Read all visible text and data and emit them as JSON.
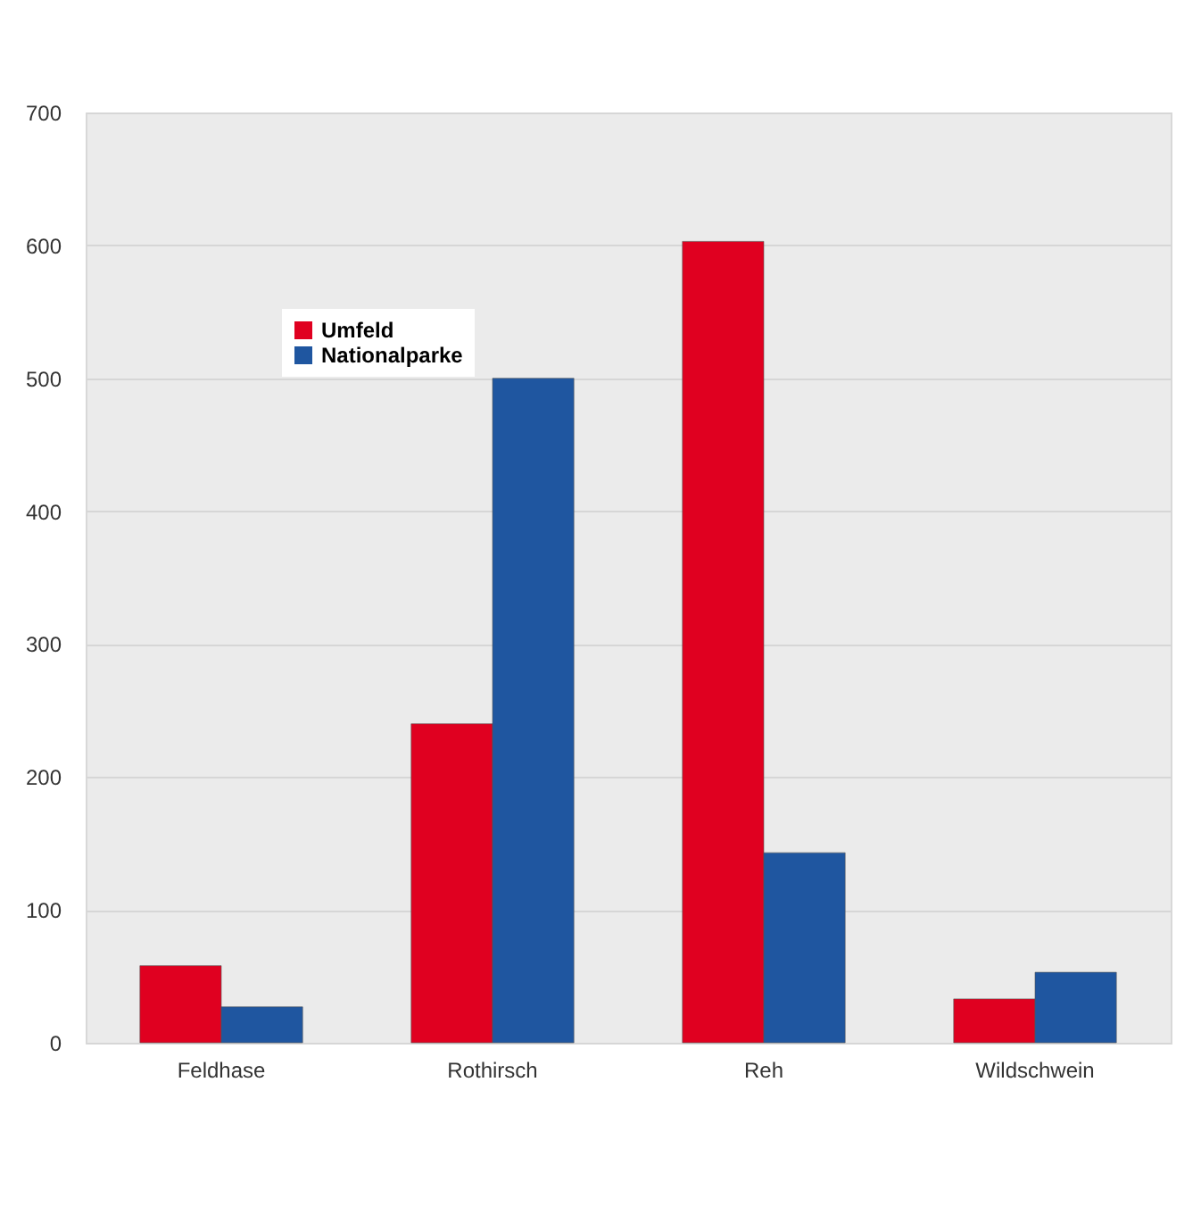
{
  "chart_data": {
    "type": "bar",
    "categories": [
      "Feldhase",
      "Rothirsch",
      "Reh",
      "Wildschwein"
    ],
    "series": [
      {
        "name": "Umfeld",
        "color": "#e00020",
        "values": [
          58,
          240,
          603,
          33
        ]
      },
      {
        "name": "Nationalparke",
        "color": "#1f56a0",
        "values": [
          27,
          500,
          143,
          53
        ]
      }
    ],
    "ylim": [
      0,
      700
    ],
    "yticks": [
      0,
      100,
      200,
      300,
      400,
      500,
      600,
      700
    ],
    "grid": "y",
    "legend": "top left"
  }
}
